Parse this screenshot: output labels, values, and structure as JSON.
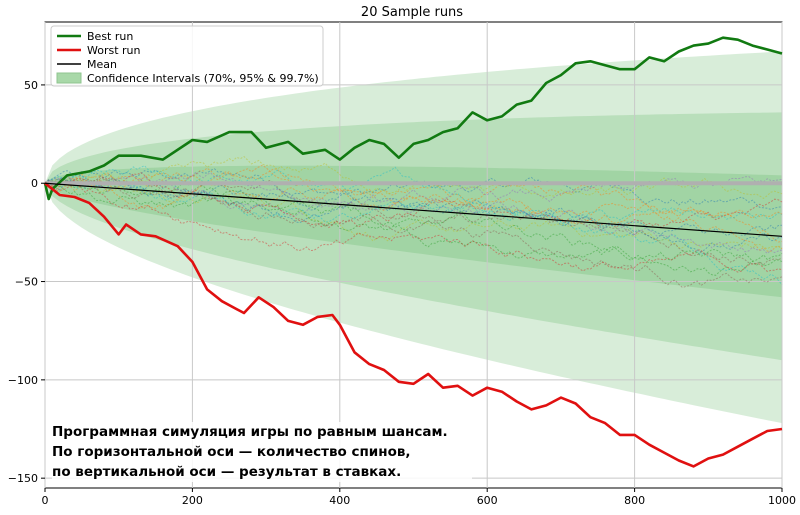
{
  "chart_data": {
    "type": "line",
    "title": "20 Sample runs",
    "xlabel": "",
    "ylabel": "",
    "xlim": [
      0,
      1000
    ],
    "ylim": [
      -155,
      82
    ],
    "xticks": [
      0,
      200,
      400,
      600,
      800,
      1000
    ],
    "yticks": [
      50,
      0,
      -50,
      -100,
      -150
    ],
    "grid": true,
    "legend": {
      "placement": "top-left",
      "entries": [
        {
          "label": "Best run",
          "color": "#117a11"
        },
        {
          "label": "Worst run",
          "color": "#e01010"
        },
        {
          "label": "Mean",
          "color": "#000000"
        },
        {
          "label": "Confidence Intervals (70%, 95% & 99.7%)",
          "color": "#a8d8a8"
        }
      ]
    },
    "mean": {
      "x": [
        0,
        1000
      ],
      "y": [
        0,
        -27
      ]
    },
    "confidence_intervals": [
      {
        "level": "70%",
        "upper_at_1000": 4,
        "lower_at_1000": -58
      },
      {
        "level": "95%",
        "upper_at_1000": 36,
        "lower_at_1000": -90
      },
      {
        "level": "99.7%",
        "upper_at_1000": 67,
        "lower_at_1000": -122
      }
    ],
    "series": [
      {
        "name": "Best run",
        "color": "#117a11",
        "x": [
          0,
          5,
          10,
          30,
          60,
          80,
          100,
          130,
          160,
          200,
          220,
          250,
          280,
          300,
          330,
          350,
          380,
          400,
          420,
          440,
          460,
          480,
          500,
          520,
          540,
          560,
          580,
          600,
          620,
          640,
          660,
          680,
          700,
          720,
          740,
          760,
          780,
          800,
          820,
          840,
          860,
          880,
          900,
          920,
          940,
          960,
          980,
          1000
        ],
        "y": [
          0,
          -8,
          -3,
          4,
          6,
          9,
          14,
          14,
          12,
          22,
          21,
          26,
          26,
          18,
          21,
          15,
          17,
          12,
          18,
          22,
          20,
          13,
          20,
          22,
          26,
          28,
          36,
          32,
          34,
          40,
          42,
          51,
          55,
          61,
          62,
          60,
          58,
          58,
          64,
          62,
          67,
          70,
          71,
          74,
          73,
          70,
          68,
          66
        ]
      },
      {
        "name": "Worst run",
        "color": "#e01010",
        "x": [
          0,
          20,
          40,
          60,
          80,
          100,
          110,
          130,
          150,
          180,
          200,
          220,
          240,
          260,
          270,
          290,
          310,
          330,
          350,
          370,
          390,
          400,
          420,
          440,
          460,
          480,
          500,
          520,
          540,
          560,
          580,
          600,
          620,
          640,
          660,
          680,
          700,
          720,
          740,
          760,
          780,
          800,
          820,
          840,
          860,
          880,
          900,
          920,
          940,
          960,
          980,
          1000
        ],
        "y": [
          0,
          -6,
          -7,
          -10,
          -17,
          -26,
          -21,
          -26,
          -27,
          -32,
          -40,
          -54,
          -60,
          -64,
          -66,
          -58,
          -63,
          -70,
          -72,
          -68,
          -67,
          -72,
          -86,
          -92,
          -95,
          -101,
          -102,
          -97,
          -104,
          -103,
          -108,
          -104,
          -106,
          -111,
          -115,
          -113,
          -109,
          -112,
          -119,
          -122,
          -128,
          -128,
          -133,
          -137,
          -141,
          -144,
          -140,
          -138,
          -134,
          -130,
          -126,
          -125
        ]
      }
    ]
  },
  "caption": {
    "lines": [
      "Программная симуляция игры по равным шансам.",
      "По горизонтальной оси — количество спинов,",
      "по вертикальной оси — результат в ставках."
    ]
  }
}
